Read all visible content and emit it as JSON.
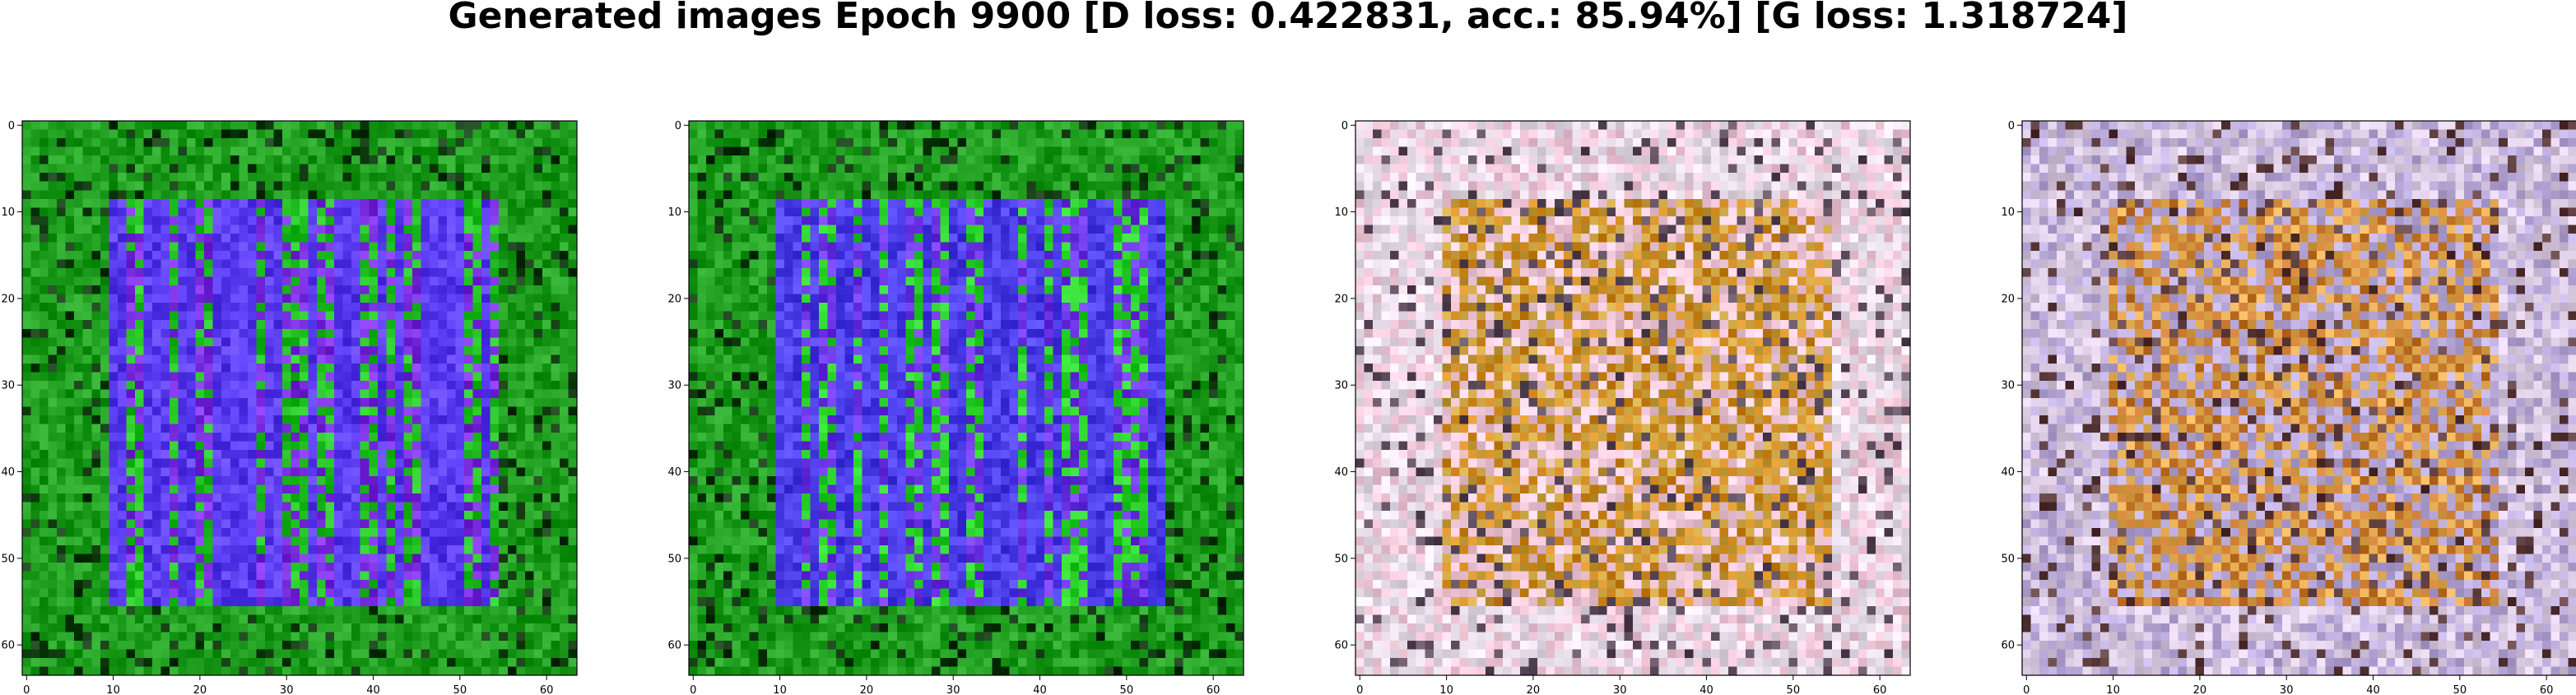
{
  "figure": {
    "title": "Generated images Epoch 9900 [D loss: 0.422831, acc.: 85.94%] [G loss: 1.318724]"
  },
  "chart_data": [
    {
      "type": "image",
      "panel": 1,
      "dominant_colors": [
        "#1f9d1f",
        "#5a3cf0",
        "#7a2ee0",
        "#103a10",
        "#22c022"
      ],
      "xlim": [
        -0.5,
        63.5
      ],
      "ylim": [
        63.5,
        -0.5
      ],
      "xticks": [
        0,
        10,
        20,
        30,
        40,
        50,
        60
      ],
      "yticks": [
        0,
        10,
        20,
        30,
        40,
        50,
        60
      ]
    },
    {
      "type": "image",
      "panel": 2,
      "dominant_colors": [
        "#1f9d1f",
        "#4b3de8",
        "#6d36e6",
        "#0f350f",
        "#2ad02a"
      ],
      "xlim": [
        -0.5,
        63.5
      ],
      "ylim": [
        63.5,
        -0.5
      ],
      "xticks": [
        0,
        10,
        20,
        30,
        40,
        50,
        60
      ],
      "yticks": [
        0,
        10,
        20,
        30,
        40,
        50,
        60
      ]
    },
    {
      "type": "image",
      "panel": 3,
      "dominant_colors": [
        "#c8a040",
        "#e6dde8",
        "#d08a20",
        "#5a4a5a",
        "#f0c8d8"
      ],
      "xlim": [
        -0.5,
        63.5
      ],
      "ylim": [
        63.5,
        -0.5
      ],
      "xticks": [
        0,
        10,
        20,
        30,
        40,
        50,
        60
      ],
      "yticks": [
        0,
        10,
        20,
        30,
        40,
        50,
        60
      ]
    },
    {
      "type": "image",
      "panel": 4,
      "dominant_colors": [
        "#c87a30",
        "#d8c8e0",
        "#e0a850",
        "#5a3a3a",
        "#b8a8d8"
      ],
      "xlim": [
        -0.5,
        63.5
      ],
      "ylim": [
        63.5,
        -0.5
      ],
      "xticks": [
        0,
        10,
        20,
        30,
        40,
        50,
        60
      ],
      "yticks": [
        0,
        10,
        20,
        30,
        40,
        50,
        60
      ]
    }
  ]
}
